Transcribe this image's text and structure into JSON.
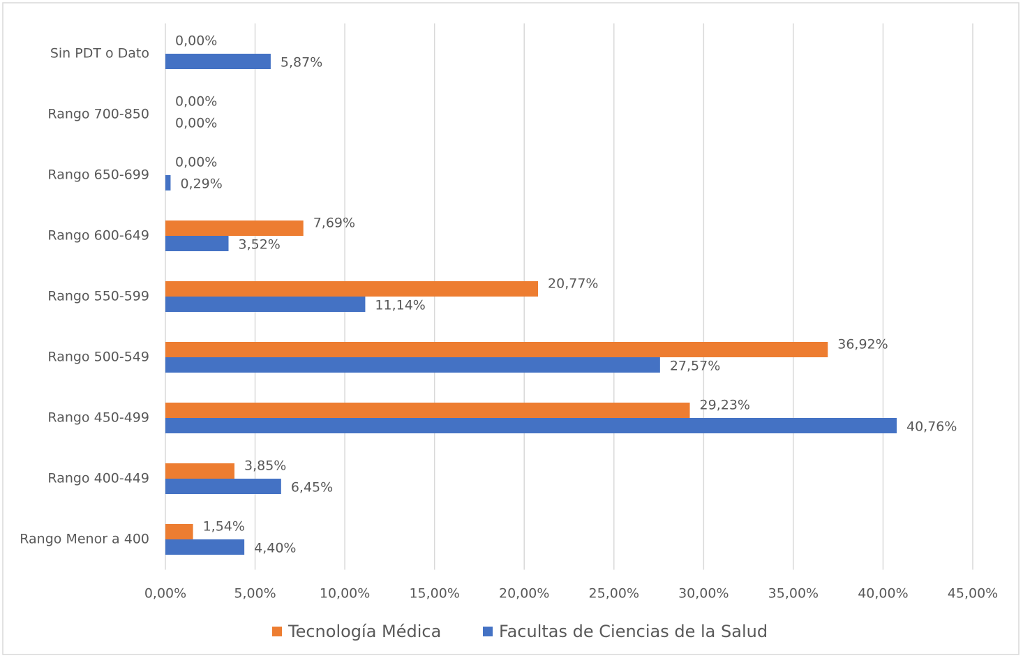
{
  "chart_data": {
    "type": "hbar",
    "categories": [
      "Sin PDT o Dato",
      "Rango 700-850",
      "Rango 650-699",
      "Rango 600-649",
      "Rango 550-599",
      "Rango 500-549",
      "Rango 450-499",
      "Rango 400-449",
      "Rango Menor a 400"
    ],
    "series": [
      {
        "name": "Tecnología Médica",
        "color": "#ed7d31",
        "values": [
          0,
          0,
          0,
          7.69,
          20.77,
          36.92,
          29.23,
          3.85,
          1.54
        ],
        "value_labels": [
          "0,00%",
          "0,00%",
          "0,00%",
          "7,69%",
          "20,77%",
          "36,92%",
          "29,23%",
          "3,85%",
          "1,54%"
        ]
      },
      {
        "name": "Facultas de Ciencias de la Salud",
        "color": "#4472c4",
        "values": [
          5.87,
          0,
          0.29,
          3.52,
          11.14,
          27.57,
          40.76,
          6.45,
          4.4
        ],
        "value_labels": [
          "5,87%",
          "0,00%",
          "0,29%",
          "3,52%",
          "11,14%",
          "27,57%",
          "40,76%",
          "6,45%",
          "4,40%"
        ]
      }
    ],
    "xlim": [
      0,
      45
    ],
    "xticks": [
      {
        "value": 0,
        "label": "0,00%"
      },
      {
        "value": 5,
        "label": "5,00%"
      },
      {
        "value": 10,
        "label": "10,00%"
      },
      {
        "value": 15,
        "label": "15,00%"
      },
      {
        "value": 20,
        "label": "20,00%"
      },
      {
        "value": 25,
        "label": "25,00%"
      },
      {
        "value": 30,
        "label": "30,00%"
      },
      {
        "value": 35,
        "label": "35,00%"
      },
      {
        "value": 40,
        "label": "40,00%"
      },
      {
        "value": 45,
        "label": "45,00%"
      }
    ],
    "grid": true,
    "legend": "bottom"
  }
}
